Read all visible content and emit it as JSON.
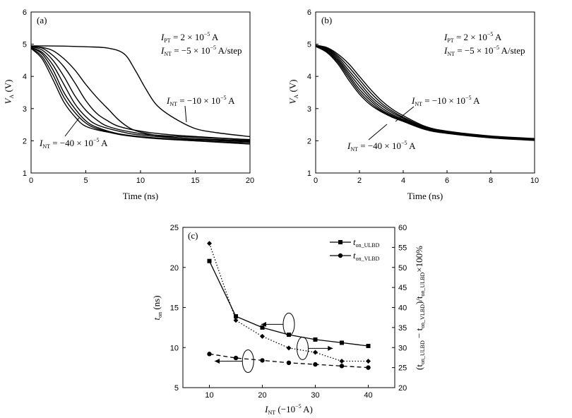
{
  "chart_data": [
    {
      "type": "line",
      "panel_label": "(a)",
      "xlabel": "Time (ns)",
      "ylabel": {
        "main": "V",
        "sub": "A",
        "unit": " (V)"
      },
      "xlim": [
        0,
        20
      ],
      "ylim": [
        1,
        6
      ],
      "xticks": [
        "0",
        "5",
        "10",
        "15",
        "20"
      ],
      "yticks": [
        "1",
        "2",
        "3",
        "4",
        "5",
        "6"
      ],
      "annotation": {
        "line1": {
          "prefix": "I",
          "sub": "PT",
          "text": " = 2 × 10",
          "sup": "−5",
          "suffix": " A"
        },
        "line2": {
          "prefix": "I",
          "sub": "NT",
          "text": " = −5 × 10",
          "sup": "−5",
          "suffix": " A/step"
        }
      },
      "curve_labels": [
        {
          "prefix": "I",
          "sub": "NT",
          "text": " = −10 × 10",
          "sup": "−5",
          "suffix": " A"
        },
        {
          "prefix": "I",
          "sub": "NT",
          "text": " = −40 × 10",
          "sup": "−5",
          "suffix": " A"
        }
      ],
      "series": [
        {
          "x": [
            0,
            3,
            5,
            7,
            8.5,
            9.5,
            10.5,
            11.5,
            13,
            15,
            17,
            20
          ],
          "y": [
            4.95,
            4.94,
            4.92,
            4.88,
            4.7,
            4.2,
            3.6,
            3.1,
            2.72,
            2.38,
            2.25,
            2.13
          ]
        },
        {
          "x": [
            0,
            1,
            2,
            3,
            4,
            5,
            6,
            7,
            8,
            9,
            10,
            12,
            15,
            20
          ],
          "y": [
            4.93,
            4.9,
            4.8,
            4.55,
            4.2,
            3.75,
            3.35,
            3.0,
            2.65,
            2.4,
            2.27,
            2.14,
            2.06,
            1.98
          ]
        },
        {
          "x": [
            0,
            1,
            2,
            3,
            4,
            5,
            6,
            7,
            8,
            10,
            13,
            20
          ],
          "y": [
            4.93,
            4.88,
            4.65,
            4.3,
            3.8,
            3.25,
            2.85,
            2.62,
            2.45,
            2.3,
            2.18,
            2.03
          ]
        },
        {
          "x": [
            0,
            1,
            2,
            3,
            4,
            5,
            6,
            7,
            9,
            12,
            20
          ],
          "y": [
            4.92,
            4.82,
            4.5,
            4.0,
            3.4,
            2.95,
            2.65,
            2.45,
            2.28,
            2.16,
            2.04
          ]
        },
        {
          "x": [
            0,
            1,
            2,
            3,
            4,
            5,
            6,
            8,
            10,
            14,
            20
          ],
          "y": [
            4.9,
            4.75,
            4.35,
            3.75,
            3.15,
            2.75,
            2.5,
            2.3,
            2.18,
            2.08,
            2.01
          ]
        },
        {
          "x": [
            0,
            1,
            2,
            3,
            4,
            5,
            6,
            8,
            11,
            15,
            20
          ],
          "y": [
            4.9,
            4.7,
            4.2,
            3.5,
            3.0,
            2.62,
            2.42,
            2.22,
            2.1,
            2.03,
            1.97
          ]
        },
        {
          "x": [
            0,
            1,
            2,
            3,
            4,
            5,
            6,
            8,
            11,
            15,
            20
          ],
          "y": [
            4.88,
            4.62,
            4.05,
            3.35,
            2.88,
            2.55,
            2.38,
            2.2,
            2.08,
            2.0,
            1.94
          ]
        },
        {
          "x": [
            0,
            1,
            2,
            3,
            4,
            5,
            7,
            10,
            14,
            20
          ],
          "y": [
            4.87,
            4.55,
            3.9,
            3.2,
            2.75,
            2.45,
            2.27,
            2.12,
            2.02,
            1.9
          ]
        }
      ]
    },
    {
      "type": "line",
      "panel_label": "(b)",
      "xlabel": "Time (ns)",
      "ylabel": {
        "main": "V",
        "sub": "A",
        "unit": " (V)"
      },
      "xlim": [
        0,
        10
      ],
      "ylim": [
        1,
        6
      ],
      "xticks": [
        "0",
        "2",
        "4",
        "6",
        "8",
        "10"
      ],
      "yticks": [
        "1",
        "2",
        "3",
        "4",
        "5",
        "6"
      ],
      "annotation": {
        "line1": {
          "prefix": "I",
          "sub": "PT",
          "text": " = 2 × 10",
          "sup": "−5",
          "suffix": " A"
        },
        "line2": {
          "prefix": "I",
          "sub": "NT",
          "text": " = −5 × 10",
          "sup": "−5",
          "suffix": " A/step"
        }
      },
      "curve_labels": [
        {
          "prefix": "I",
          "sub": "NT",
          "text": " = −10 × 10",
          "sup": "−5",
          "suffix": " A"
        },
        {
          "prefix": "I",
          "sub": "NT",
          "text": " = −40 × 10",
          "sup": "−5",
          "suffix": " A"
        }
      ],
      "series": [
        {
          "x": [
            0,
            0.5,
            1,
            1.5,
            2,
            2.5,
            3,
            3.5,
            4,
            5,
            6,
            8,
            10
          ],
          "y": [
            4.97,
            4.9,
            4.7,
            4.4,
            4.0,
            3.6,
            3.25,
            2.98,
            2.78,
            2.45,
            2.3,
            2.15,
            2.07
          ]
        },
        {
          "x": [
            0,
            0.5,
            1,
            1.5,
            2,
            2.5,
            3,
            3.5,
            4,
            5,
            6,
            8,
            10
          ],
          "y": [
            4.96,
            4.88,
            4.65,
            4.3,
            3.9,
            3.5,
            3.17,
            2.92,
            2.73,
            2.42,
            2.28,
            2.13,
            2.06
          ]
        },
        {
          "x": [
            0,
            0.5,
            1,
            1.5,
            2,
            2.5,
            3,
            3.5,
            4,
            5,
            6,
            8,
            10
          ],
          "y": [
            4.95,
            4.85,
            4.6,
            4.2,
            3.8,
            3.4,
            3.1,
            2.87,
            2.7,
            2.4,
            2.27,
            2.12,
            2.05
          ]
        },
        {
          "x": [
            0,
            0.5,
            1,
            1.5,
            2,
            2.5,
            3,
            3.5,
            4,
            5,
            6,
            8,
            10
          ],
          "y": [
            4.95,
            4.83,
            4.55,
            4.12,
            3.7,
            3.32,
            3.03,
            2.82,
            2.66,
            2.38,
            2.26,
            2.11,
            2.04
          ]
        },
        {
          "x": [
            0,
            0.5,
            1,
            1.5,
            2,
            2.5,
            3,
            3.5,
            4,
            5,
            6,
            8,
            10
          ],
          "y": [
            4.94,
            4.8,
            4.5,
            4.05,
            3.6,
            3.25,
            2.97,
            2.78,
            2.63,
            2.37,
            2.25,
            2.1,
            2.03
          ]
        },
        {
          "x": [
            0,
            0.5,
            1,
            1.5,
            2,
            2.5,
            3,
            3.5,
            4,
            5,
            6,
            8,
            10
          ],
          "y": [
            4.94,
            4.78,
            4.45,
            3.98,
            3.52,
            3.18,
            2.93,
            2.75,
            2.61,
            2.36,
            2.24,
            2.1,
            2.02
          ]
        },
        {
          "x": [
            0,
            0.5,
            1,
            1.5,
            2,
            2.5,
            3,
            3.5,
            4,
            5,
            6,
            8,
            10
          ],
          "y": [
            4.93,
            4.75,
            4.4,
            3.9,
            3.45,
            3.12,
            2.9,
            2.73,
            2.6,
            2.35,
            2.23,
            2.09,
            2.01
          ]
        }
      ]
    },
    {
      "type": "line",
      "panel_label": "(c)",
      "xlabel": {
        "main": "I",
        "sub": "NT",
        "unit": " (−10",
        "sup": "−5",
        "tail": " A)"
      },
      "ylabel": {
        "main": "t",
        "sub": "on",
        "unit": " (ns)"
      },
      "y2label": {
        "p1": "(t",
        "s1": "on_ULBD",
        "p2": " − t",
        "s2": "on_VLBD",
        "p3": ")/t",
        "s3": "on_ULBD",
        "p4": "×100%"
      },
      "xlim": [
        5,
        45
      ],
      "ylim": [
        5,
        25
      ],
      "y2lim": [
        20,
        60
      ],
      "xticks": [
        "10",
        "20",
        "30",
        "40"
      ],
      "yticks": [
        "5",
        "10",
        "15",
        "20",
        "25"
      ],
      "y2ticks": [
        "20",
        "25",
        "30",
        "35",
        "40",
        "45",
        "50",
        "55",
        "60"
      ],
      "x": [
        10,
        15,
        20,
        25,
        30,
        35,
        40
      ],
      "series": [
        {
          "label_main": "t",
          "label_sub": "on_ULBD",
          "marker": "square",
          "dash": "solid",
          "axis": "left",
          "values": [
            20.8,
            13.9,
            12.5,
            11.6,
            11.0,
            10.6,
            10.2
          ]
        },
        {
          "label_main": "t",
          "label_sub": "on_VLBD",
          "marker": "circle",
          "dash": "dashed",
          "axis": "left",
          "values": [
            9.2,
            8.7,
            8.4,
            8.1,
            7.9,
            7.7,
            7.5
          ]
        },
        {
          "marker": "diamond",
          "dash": "dotted",
          "axis": "right",
          "values": [
            56.0,
            36.8,
            32.8,
            29.9,
            28.8,
            26.6,
            26.6
          ]
        }
      ],
      "ellipse_markers": [
        {
          "x": 25,
          "y": 12.9,
          "arrow_to_x": 19.8,
          "arrow_dir": "left"
        },
        {
          "x": 27.6,
          "y": 9.9,
          "arrow_to_x": 33.3,
          "arrow_dir": "right"
        },
        {
          "x": 17.3,
          "y": 8.3,
          "arrow_to_x": 11.0,
          "arrow_dir": "left"
        }
      ]
    }
  ]
}
